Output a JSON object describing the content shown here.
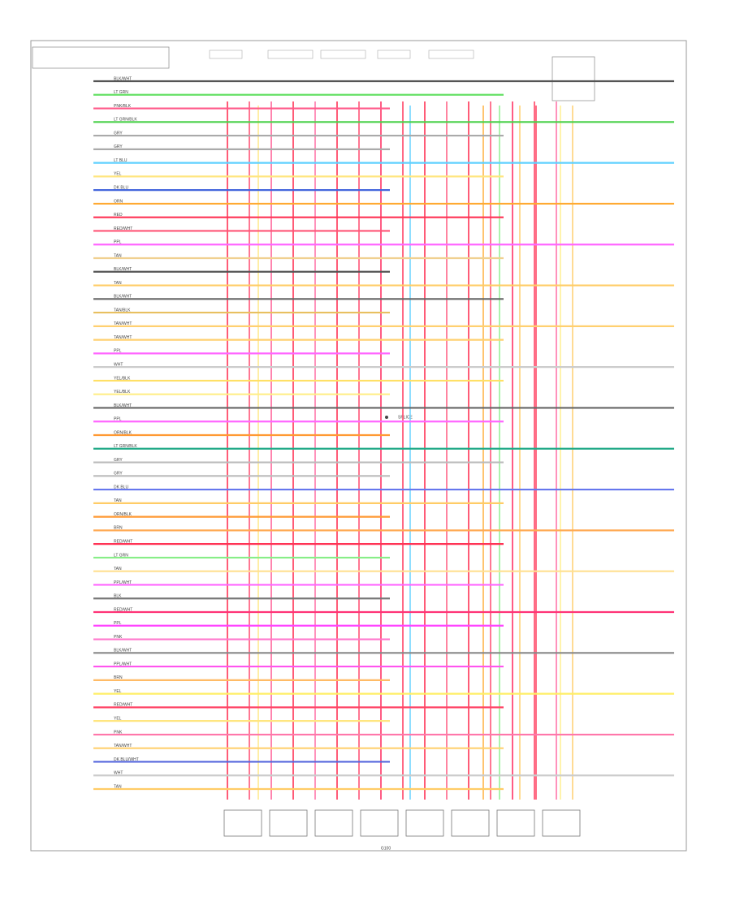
{
  "diagram": {
    "footer": "G100",
    "splice_note": "SPLICE",
    "rows": [
      {
        "code": "BLK/WHT",
        "color": "#555"
      },
      {
        "code": "LT GRN",
        "color": "#66e066"
      },
      {
        "code": "PNK/BLK",
        "color": "#ff5a8a"
      },
      {
        "code": "LT GRN/BLK",
        "color": "#4cd14c"
      },
      {
        "code": "GRY",
        "color": "#aaa"
      },
      {
        "code": "GRY",
        "color": "#aaa"
      },
      {
        "code": "LT BLU",
        "color": "#5fd0ff"
      },
      {
        "code": "YEL",
        "color": "#ffe680"
      },
      {
        "code": "DK BLU",
        "color": "#4466dd"
      },
      {
        "code": "ORN",
        "color": "#ffaa33"
      },
      {
        "code": "RED",
        "color": "#ff3355"
      },
      {
        "code": "RED/WHT",
        "color": "#ff5577"
      },
      {
        "code": "PPL",
        "color": "#ff66ff"
      },
      {
        "code": "TAN",
        "color": "#f0d090"
      },
      {
        "code": "BLK/WHT",
        "color": "#555"
      },
      {
        "code": "TAN",
        "color": "#ffcc66"
      },
      {
        "code": "BLK/WHT",
        "color": "#666"
      },
      {
        "code": "TAN/BLK",
        "color": "#e8c060"
      },
      {
        "code": "TAN/WHT",
        "color": "#ffd070"
      },
      {
        "code": "TAN/WHT",
        "color": "#ffd070"
      },
      {
        "code": "PPL",
        "color": "#ff66ff"
      },
      {
        "code": "WHT",
        "color": "#ccc"
      },
      {
        "code": "YEL/BLK",
        "color": "#ffe066"
      },
      {
        "code": "YEL/BLK",
        "color": "#ffee88"
      },
      {
        "code": "BLK/WHT",
        "color": "#666"
      },
      {
        "code": "PPL",
        "color": "#ff66ff"
      },
      {
        "code": "ORN/BLK",
        "color": "#ff9933"
      },
      {
        "code": "LT GRN/BLK",
        "color": "#22aa88"
      },
      {
        "code": "GRY",
        "color": "#bbb"
      },
      {
        "code": "GRY",
        "color": "#bbb"
      },
      {
        "code": "DK BLU",
        "color": "#6677ee"
      },
      {
        "code": "TAN",
        "color": "#ffcc66"
      },
      {
        "code": "ORN/BLK",
        "color": "#ff9933"
      },
      {
        "code": "BRN",
        "color": "#ffaa55"
      },
      {
        "code": "RED/WHT",
        "color": "#ff3355"
      },
      {
        "code": "LT GRN",
        "color": "#88ee88"
      },
      {
        "code": "TAN",
        "color": "#ffe090"
      },
      {
        "code": "PPL/WHT",
        "color": "#ff66ff"
      },
      {
        "code": "BLK",
        "color": "#777"
      },
      {
        "code": "RED/WHT",
        "color": "#ff3377"
      },
      {
        "code": "PPL",
        "color": "#ff44ff"
      },
      {
        "code": "PNK",
        "color": "#ff77cc"
      },
      {
        "code": "BLK/WHT",
        "color": "#888"
      },
      {
        "code": "PPL/WHT",
        "color": "#ff55ee"
      },
      {
        "code": "BRN",
        "color": "#ffbb66"
      },
      {
        "code": "YEL",
        "color": "#ffee66"
      },
      {
        "code": "RED/WHT",
        "color": "#ff4466"
      },
      {
        "code": "YEL",
        "color": "#ffe680"
      },
      {
        "code": "PNK",
        "color": "#ff77aa"
      },
      {
        "code": "TAN/WHT",
        "color": "#ffd070"
      },
      {
        "code": "DK BLU/WHT",
        "color": "#5566dd"
      },
      {
        "code": "WHT",
        "color": "#ccc"
      },
      {
        "code": "TAN",
        "color": "#ffcc66"
      }
    ]
  }
}
